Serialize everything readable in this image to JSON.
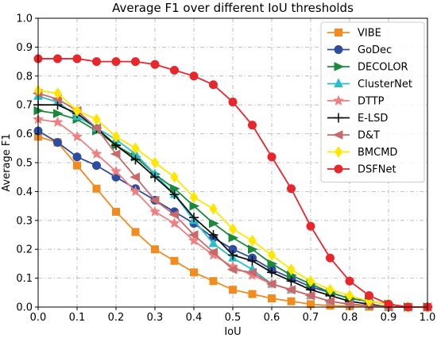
{
  "chart_data": {
    "type": "line",
    "title": "Average F1 over different IoU thresholds",
    "xlabel": "IoU",
    "ylabel": "Average F1",
    "xlim": [
      0.0,
      1.0
    ],
    "ylim": [
      0.0,
      1.0
    ],
    "xticks": [
      "0.0",
      "0.1",
      "0.2",
      "0.3",
      "0.4",
      "0.5",
      "0.6",
      "0.7",
      "0.8",
      "0.9",
      "1.0"
    ],
    "yticks": [
      "0.0",
      "0.1",
      "0.2",
      "0.3",
      "0.4",
      "0.5",
      "0.6",
      "0.7",
      "0.8",
      "0.9",
      "1.0"
    ],
    "grid": true,
    "legend_position": "top-right",
    "x": [
      0.0,
      0.05,
      0.1,
      0.15,
      0.2,
      0.25,
      0.3,
      0.35,
      0.4,
      0.45,
      0.5,
      0.55,
      0.6,
      0.65,
      0.7,
      0.75,
      0.8,
      0.85,
      0.9,
      0.95,
      1.0
    ],
    "series": [
      {
        "name": "VIBE",
        "color": "#f28c1f",
        "marker": "square",
        "values": [
          0.59,
          0.57,
          0.49,
          0.41,
          0.33,
          0.26,
          0.2,
          0.16,
          0.12,
          0.09,
          0.06,
          0.045,
          0.03,
          0.02,
          0.01,
          0.005,
          0.003,
          0.001,
          0.0,
          0.0,
          0.0
        ]
      },
      {
        "name": "GoDec",
        "color": "#2e4d9e",
        "marker": "circle",
        "values": [
          0.61,
          0.57,
          0.52,
          0.49,
          0.45,
          0.41,
          0.37,
          0.33,
          0.29,
          0.24,
          0.2,
          0.17,
          0.13,
          0.1,
          0.07,
          0.05,
          0.03,
          0.02,
          0.01,
          0.0,
          0.0
        ]
      },
      {
        "name": "DECOLOR",
        "color": "#1a8a3a",
        "marker": "triangle-right",
        "values": [
          0.68,
          0.67,
          0.65,
          0.61,
          0.56,
          0.52,
          0.46,
          0.41,
          0.35,
          0.29,
          0.24,
          0.2,
          0.15,
          0.11,
          0.08,
          0.05,
          0.03,
          0.02,
          0.01,
          0.0,
          0.0
        ]
      },
      {
        "name": "ClusterNet",
        "color": "#2bbec9",
        "marker": "triangle-up",
        "values": [
          0.73,
          0.71,
          0.66,
          0.62,
          0.58,
          0.53,
          0.46,
          0.39,
          0.3,
          0.22,
          0.17,
          0.13,
          0.08,
          0.06,
          0.04,
          0.02,
          0.01,
          0.005,
          0.0,
          0.0,
          0.0
        ]
      },
      {
        "name": "DTTP",
        "color": "#f08080",
        "marker": "star",
        "values": [
          0.65,
          0.64,
          0.59,
          0.53,
          0.47,
          0.4,
          0.33,
          0.29,
          0.23,
          0.18,
          0.14,
          0.11,
          0.08,
          0.06,
          0.04,
          0.02,
          0.01,
          0.005,
          0.0,
          0.0,
          0.0
        ]
      },
      {
        "name": "E-LSD",
        "color": "#111111",
        "marker": "plus",
        "values": [
          0.7,
          0.7,
          0.67,
          0.62,
          0.56,
          0.51,
          0.45,
          0.39,
          0.31,
          0.25,
          0.18,
          0.16,
          0.12,
          0.09,
          0.06,
          0.04,
          0.02,
          0.01,
          0.0,
          0.0,
          0.0
        ]
      },
      {
        "name": "D&T",
        "color": "#c96a6a",
        "marker": "triangle-left",
        "values": [
          0.74,
          0.72,
          0.68,
          0.62,
          0.53,
          0.45,
          0.37,
          0.32,
          0.25,
          0.19,
          0.13,
          0.12,
          0.08,
          0.06,
          0.04,
          0.02,
          0.01,
          0.005,
          0.0,
          0.0,
          0.0
        ]
      },
      {
        "name": "BMCMD",
        "color": "#ffe600",
        "marker": "diamond",
        "values": [
          0.75,
          0.74,
          0.68,
          0.65,
          0.59,
          0.55,
          0.5,
          0.45,
          0.38,
          0.34,
          0.27,
          0.23,
          0.18,
          0.13,
          0.09,
          0.06,
          0.04,
          0.02,
          0.01,
          0.0,
          0.0
        ]
      },
      {
        "name": "DSFNet",
        "color": "#e8262b",
        "marker": "circle",
        "values": [
          0.86,
          0.86,
          0.86,
          0.85,
          0.85,
          0.85,
          0.84,
          0.82,
          0.8,
          0.77,
          0.71,
          0.63,
          0.52,
          0.41,
          0.28,
          0.17,
          0.09,
          0.04,
          0.01,
          0.0,
          0.0
        ]
      }
    ]
  }
}
